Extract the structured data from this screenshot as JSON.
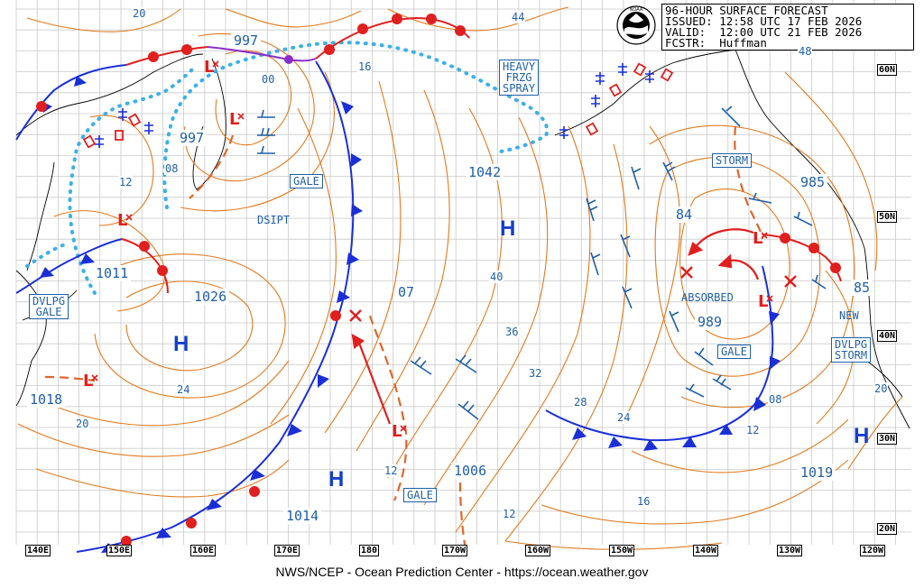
{
  "header": {
    "title": "96-HOUR SURFACE FORECAST",
    "issued_label": "ISSUED:",
    "issued": "12:58 UTC 17 FEB 2026",
    "valid_label": "VALID:",
    "valid": "12:00 UTC 21 FEB 2026",
    "forecaster_label": "FCSTR:",
    "forecaster": "Huffman"
  },
  "logo": {
    "icon": "noaa-logo-icon",
    "text": "NOAA"
  },
  "footer": "NWS/NCEP - Ocean Prediction Center - https://ocean.weather.gov",
  "longitudes": [
    "140E",
    "150E",
    "160E",
    "170E",
    "180",
    "170W",
    "160W",
    "150W",
    "140W",
    "130W",
    "120W"
  ],
  "latitudes": [
    "60N",
    "50N",
    "40N",
    "30N",
    "20N"
  ],
  "pressure_centers": [
    {
      "kind": "L",
      "value": "997",
      "text": "997"
    },
    {
      "kind": "L",
      "value": "997",
      "text": "997"
    },
    {
      "kind": "L",
      "value": "1011",
      "text": "1011"
    },
    {
      "kind": "L",
      "value": "1018",
      "text": "1018"
    },
    {
      "kind": "H",
      "value": "1026",
      "text": "1026"
    },
    {
      "kind": "H",
      "value": "1042",
      "text": "1042"
    },
    {
      "kind": "H",
      "value": "1014",
      "text": "1014"
    },
    {
      "kind": "L",
      "value": "1006",
      "text": "1006"
    },
    {
      "kind": "L",
      "value": "989",
      "text": "989"
    },
    {
      "kind": "L",
      "value": "985",
      "text": "985"
    },
    {
      "kind": "H",
      "value": "1019",
      "text": "1019"
    }
  ],
  "high_symbol": "H",
  "low_symbol": "L",
  "warnings": {
    "gale_nw": "GALE",
    "gale_mid": "GALE",
    "gale_east": "GALE",
    "storm": "STORM",
    "dvlpg_gale": "DVLPG\nGALE",
    "dvlpg_storm": "DVLPG\nSTORM",
    "heavy_spray": "HEAVY\nFRZG\nSPRAY"
  },
  "annotations": {
    "dsipt": "DSIPT",
    "absorbed": "ABSORBED",
    "new": "NEW",
    "center_84": "84",
    "center_07": "07",
    "center_85": "85"
  },
  "isobar_labels": [
    "20",
    "44",
    "48",
    "16",
    "00",
    "08",
    "12",
    "40",
    "36",
    "32",
    "28",
    "24",
    "24",
    "20",
    "16",
    "12",
    "12",
    "08",
    "12",
    "20"
  ],
  "colors": {
    "isobar": "#e07a1e",
    "cold_front": "#1a2fd6",
    "warm_front": "#e01f1f",
    "ice_line": "#3cb0e8",
    "text_blue": "#1f5fa8",
    "grid": "#c9c9c9",
    "coast": "#000000"
  }
}
